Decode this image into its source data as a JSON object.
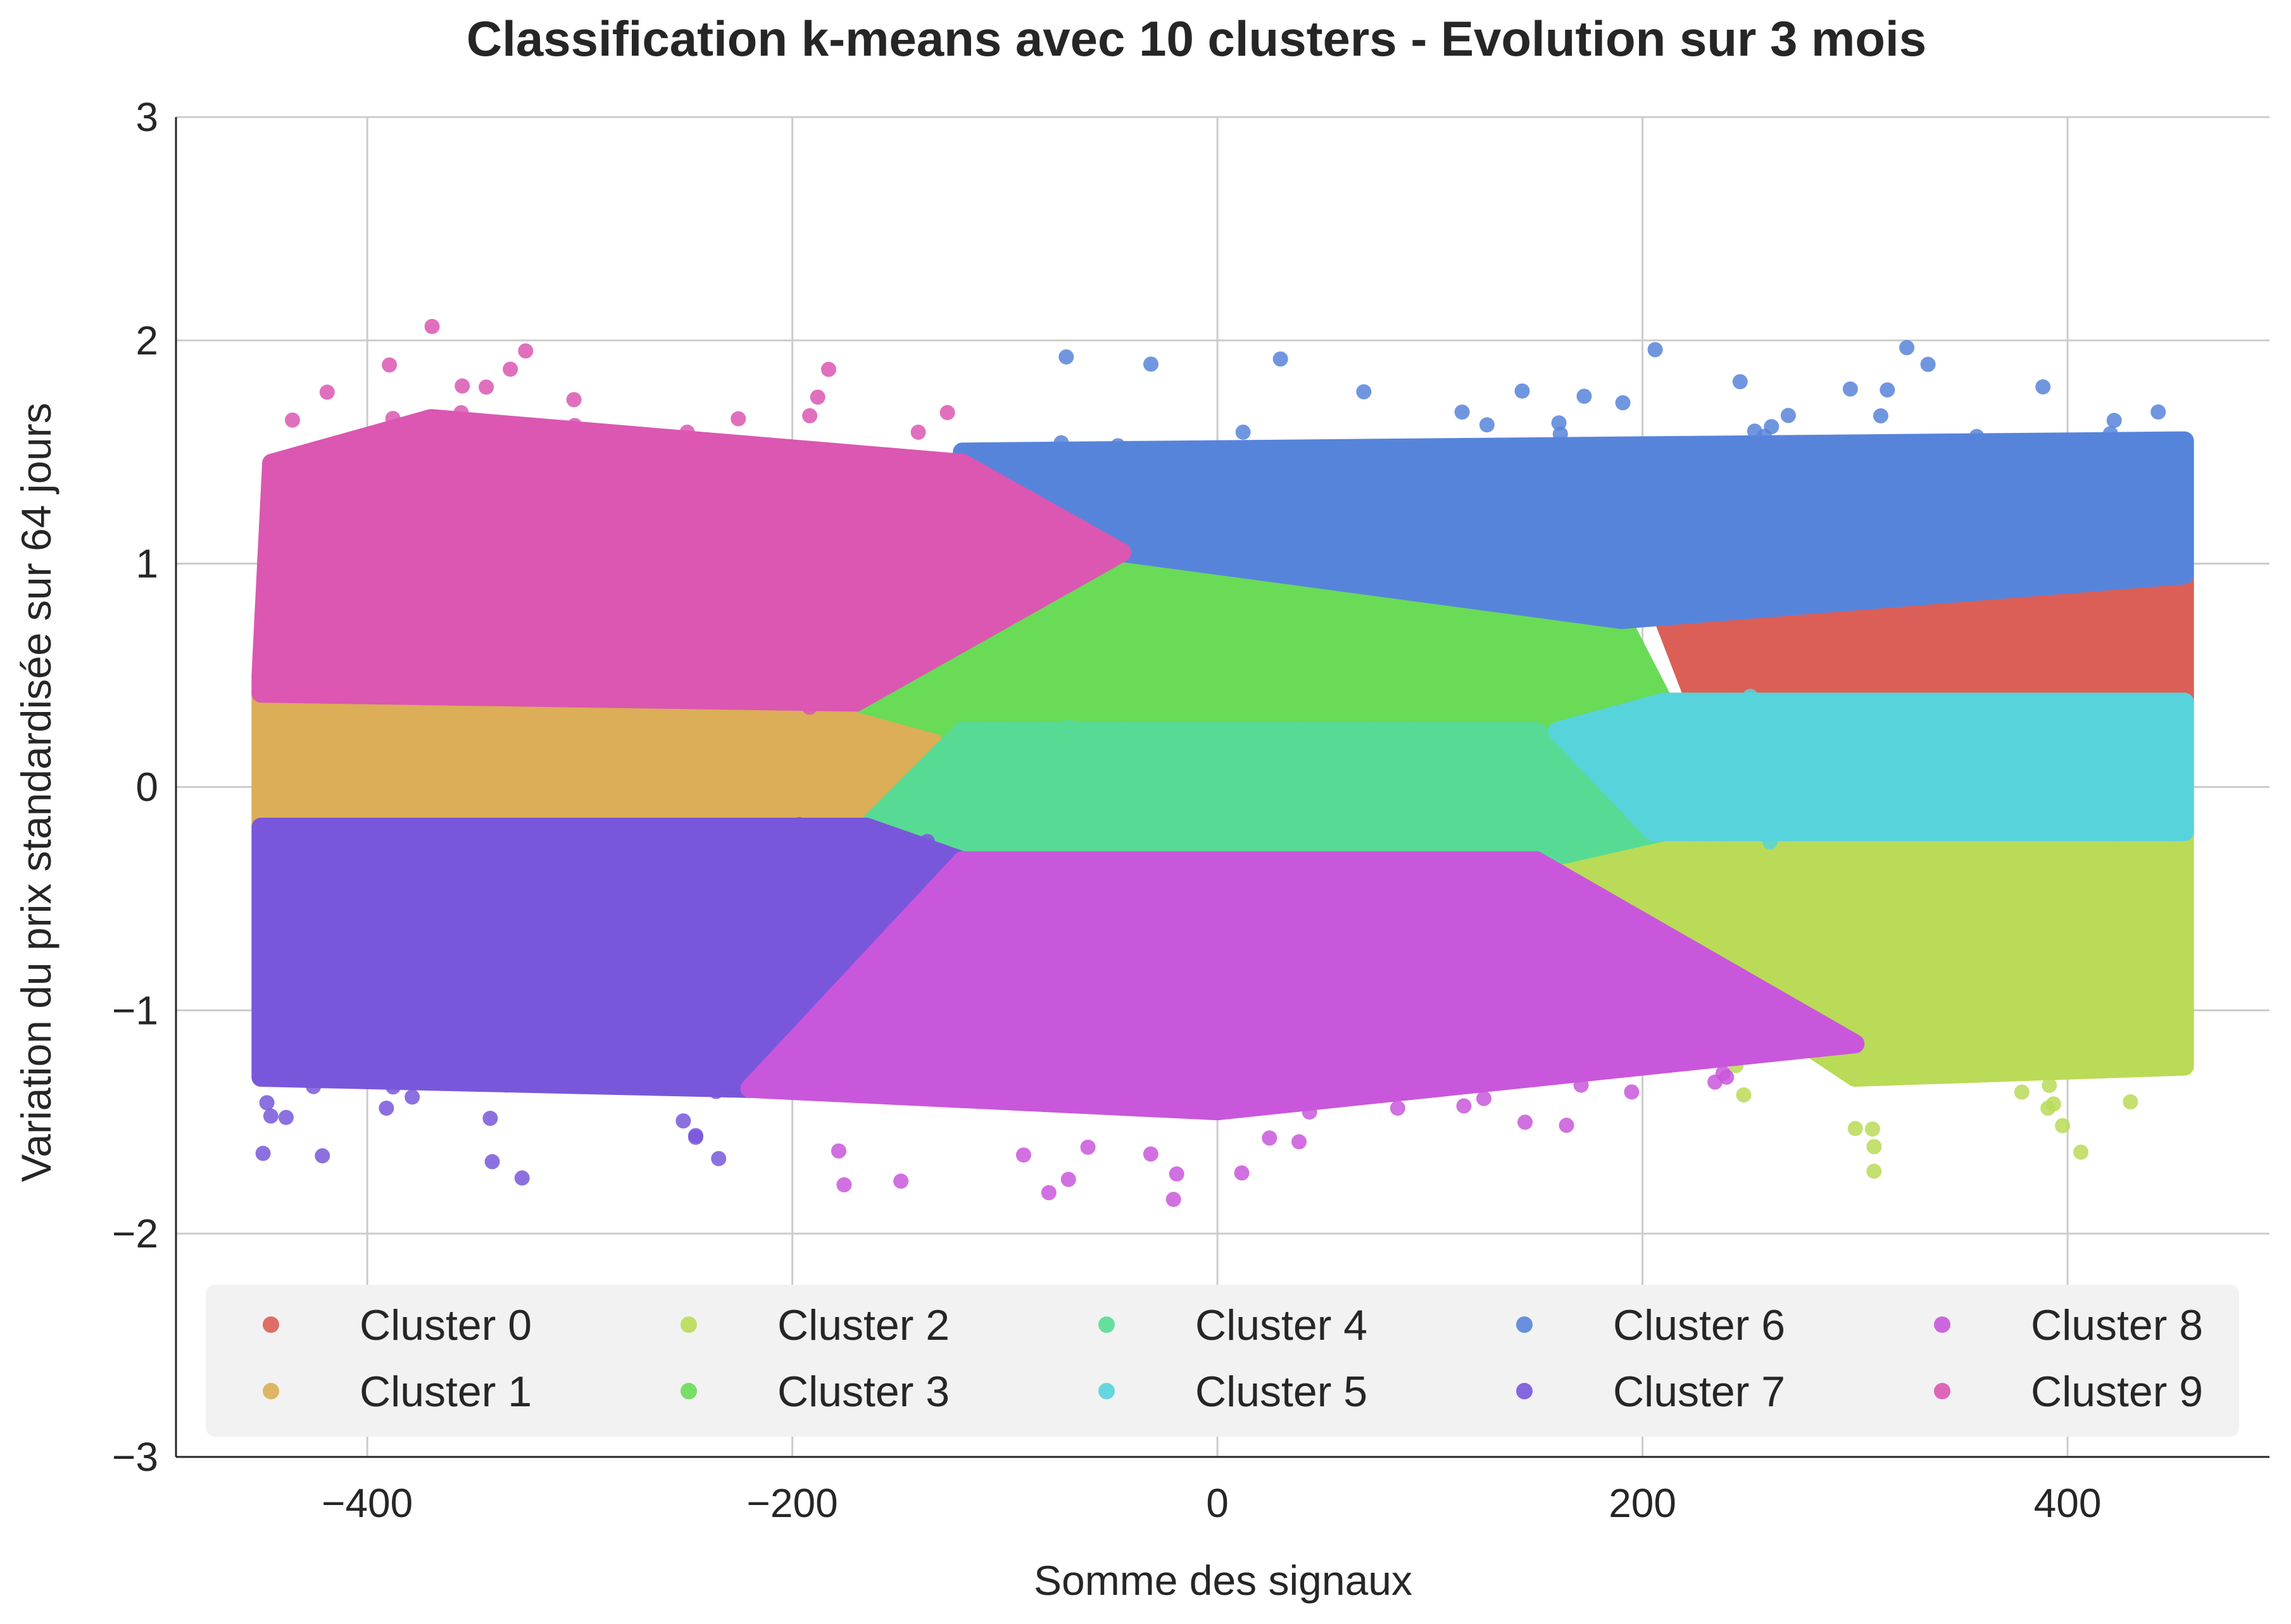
{
  "chart_data": {
    "type": "scatter",
    "title": "Classification k-means avec 10 clusters - Evolution sur 3 mois",
    "xlabel": "Somme des signaux",
    "ylabel": "Variation du prix standardisée sur 64 jours",
    "xlim": [
      -490,
      495
    ],
    "ylim": [
      -3,
      3
    ],
    "xticks": [
      -400,
      -200,
      0,
      200,
      400
    ],
    "xtick_labels": [
      "−400",
      "−200",
      "0",
      "200",
      "400"
    ],
    "yticks": [
      3,
      2,
      1,
      0,
      -1,
      -2,
      -3
    ],
    "ytick_labels": [
      "3",
      "2",
      "1",
      "0",
      "−1",
      "−2",
      "−3"
    ],
    "grid": true,
    "legend_position": "lower-center",
    "legend_columns": 5,
    "series": [
      {
        "name": "Cluster 0",
        "color": "#db5f57",
        "region": [
          [
            210,
            0.75
          ],
          [
            455,
            0.95
          ],
          [
            455,
            0.38
          ],
          [
            225,
            0.38
          ]
        ]
      },
      {
        "name": "Cluster 1",
        "color": "#dbae57",
        "region": [
          [
            -450,
            0.42
          ],
          [
            -170,
            0.38
          ],
          [
            -125,
            0.22
          ],
          [
            -165,
            -0.18
          ],
          [
            -450,
            -0.18
          ]
        ]
      },
      {
        "name": "Cluster 2",
        "color": "#b9db57",
        "region": [
          [
            205,
            -0.2
          ],
          [
            455,
            -0.2
          ],
          [
            455,
            -1.25
          ],
          [
            300,
            -1.3
          ],
          [
            150,
            -0.35
          ]
        ]
      },
      {
        "name": "Cluster 3",
        "color": "#69db57",
        "region": [
          [
            -170,
            0.38
          ],
          [
            -45,
            1.05
          ],
          [
            190,
            0.75
          ],
          [
            210,
            0.38
          ],
          [
            150,
            0.25
          ],
          [
            -120,
            0.25
          ]
        ]
      },
      {
        "name": "Cluster 4",
        "color": "#57db94",
        "region": [
          [
            -120,
            0.25
          ],
          [
            150,
            0.25
          ],
          [
            210,
            -0.2
          ],
          [
            150,
            -0.33
          ],
          [
            -120,
            -0.33
          ],
          [
            -165,
            -0.18
          ]
        ]
      },
      {
        "name": "Cluster 5",
        "color": "#57d3db",
        "region": [
          [
            160,
            0.25
          ],
          [
            210,
            0.38
          ],
          [
            455,
            0.38
          ],
          [
            455,
            -0.2
          ],
          [
            205,
            -0.2
          ]
        ]
      },
      {
        "name": "Cluster 6",
        "color": "#5784db",
        "region": [
          [
            -120,
            1.5
          ],
          [
            455,
            1.55
          ],
          [
            455,
            0.95
          ],
          [
            190,
            0.75
          ],
          [
            -45,
            1.05
          ],
          [
            -100,
            1.3
          ]
        ]
      },
      {
        "name": "Cluster 7",
        "color": "#7957db",
        "region": [
          [
            -450,
            -0.18
          ],
          [
            -165,
            -0.18
          ],
          [
            -120,
            -0.33
          ],
          [
            -220,
            -1.35
          ],
          [
            -450,
            -1.3
          ]
        ]
      },
      {
        "name": "Cluster 8",
        "color": "#c957db",
        "region": [
          [
            -120,
            -0.33
          ],
          [
            150,
            -0.33
          ],
          [
            300,
            -1.15
          ],
          [
            0,
            -1.45
          ],
          [
            -220,
            -1.35
          ]
        ]
      },
      {
        "name": "Cluster 9",
        "color": "#db57b2",
        "region": [
          [
            -450,
            0.5
          ],
          [
            -445,
            1.45
          ],
          [
            -370,
            1.65
          ],
          [
            -120,
            1.45
          ],
          [
            -45,
            1.05
          ],
          [
            -170,
            0.38
          ],
          [
            -450,
            0.42
          ]
        ]
      }
    ]
  }
}
